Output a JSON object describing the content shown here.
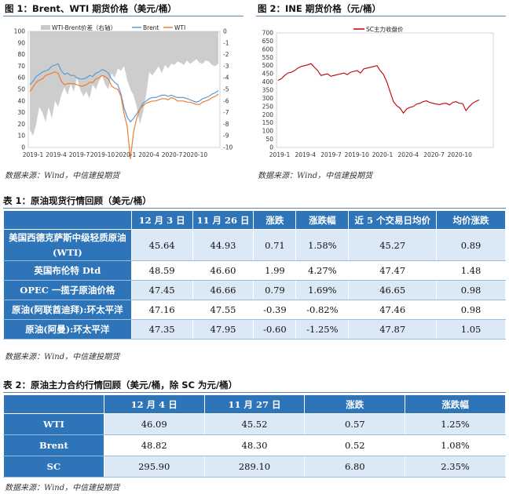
{
  "figure1": {
    "title": "图 1：Brent、WTI 期货价格（美元/桶）",
    "legend": [
      "WTI-Brent价差（右轴）",
      "Brent",
      "WTI"
    ],
    "source": "数据来源：Wind，中信建投期货",
    "chart_data": {
      "type": "line",
      "x_ticks": [
        "2019-1",
        "2019-4",
        "2019-7",
        "2019-10",
        "2020-1",
        "2020-4",
        "2020-7",
        "2020-10"
      ],
      "left_axis": {
        "ticks": [
          0,
          10,
          20,
          30,
          40,
          50,
          60,
          70,
          80,
          90,
          100
        ],
        "range": [
          0,
          100
        ]
      },
      "right_axis": {
        "ticks": [
          0,
          -1,
          -2,
          -3,
          -4,
          -5,
          -6,
          -7,
          -8,
          -9,
          -10
        ],
        "range": [
          -10,
          0
        ]
      },
      "series": [
        {
          "name": "WTI-Brent价差（右轴）",
          "kind": "area",
          "color": "#c8c8c8",
          "values": [
            -8.5,
            -9.0,
            -8.0,
            -6.5,
            -7.0,
            -7.8,
            -6.5,
            -7.5,
            -6.0,
            -6.5,
            -5.5,
            -4.8,
            -5.5,
            -4.5,
            -5.2,
            -4.0,
            -5.0,
            -5.6,
            -5.2,
            -5.8,
            -4.6,
            -5.0,
            -4.3,
            -3.8,
            -4.6,
            -5.0,
            -3.6,
            -4.0,
            -3.2,
            -3.4,
            -3.0,
            -4.2,
            -5.0,
            -5.5,
            -6.5,
            -8.0,
            -7.0,
            -5.5,
            -3.5,
            -3.8,
            -3.4,
            -3.0,
            -3.6,
            -2.9,
            -3.2,
            -2.8,
            -2.9,
            -2.6,
            -2.7,
            -2.9,
            -2.5,
            -2.8,
            -2.6,
            -2.4,
            -2.7,
            -2.8,
            -2.5,
            -2.6,
            -2.9,
            -3.0,
            -2.8
          ]
        },
        {
          "name": "Brent",
          "kind": "line",
          "color": "#5b9bd5",
          "values": [
            54,
            57,
            61,
            63,
            65,
            66,
            67,
            70,
            71,
            72,
            66,
            63,
            64,
            62,
            62,
            60,
            59,
            59,
            60,
            62,
            61,
            64,
            65,
            67,
            66,
            64,
            59,
            56,
            54,
            46,
            34,
            26,
            22,
            25,
            29,
            33,
            38,
            40,
            42,
            43,
            43,
            44,
            45,
            45,
            44,
            45,
            44,
            43,
            43,
            43,
            42,
            41,
            40,
            39,
            40,
            42,
            43,
            44,
            46,
            47,
            49
          ]
        },
        {
          "name": "WTI",
          "kind": "line",
          "color": "#ed7d31",
          "values": [
            48,
            52,
            56,
            58,
            59,
            62,
            63,
            64,
            65,
            64,
            57,
            54,
            55,
            55,
            55,
            54,
            53,
            53,
            54,
            56,
            56,
            59,
            60,
            62,
            61,
            59,
            53,
            51,
            50,
            44,
            29,
            18,
            -10,
            13,
            25,
            33,
            36,
            38,
            39,
            40,
            40,
            41,
            42,
            42,
            41,
            43,
            42,
            40,
            40,
            40,
            39,
            39,
            38,
            37,
            37,
            39,
            40,
            41,
            43,
            44,
            46
          ]
        }
      ]
    }
  },
  "figure2": {
    "title": "图 2：INE 期货价格（元/桶）",
    "legend": [
      "SC主力收盘价"
    ],
    "source": "数据来源：Wind，中信建投期货",
    "chart_data": {
      "type": "line",
      "x_ticks": [
        "2019-1",
        "2019-4",
        "2019-7",
        "2019-10",
        "2020-1",
        "2020-4",
        "2020-7",
        "2020-10"
      ],
      "y_axis": {
        "ticks": [
          0,
          50,
          100,
          150,
          200,
          250,
          300,
          350,
          400,
          450,
          500,
          550,
          600,
          650,
          700
        ],
        "range": [
          0,
          700
        ]
      },
      "series": [
        {
          "name": "SC主力收盘价",
          "color": "#c00000",
          "values": [
            410,
            420,
            440,
            455,
            460,
            470,
            485,
            495,
            500,
            505,
            512,
            490,
            470,
            440,
            445,
            450,
            435,
            440,
            445,
            450,
            455,
            445,
            460,
            465,
            470,
            455,
            480,
            485,
            490,
            495,
            500,
            470,
            445,
            400,
            340,
            280,
            255,
            240,
            210,
            235,
            245,
            250,
            265,
            270,
            280,
            285,
            275,
            270,
            265,
            262,
            268,
            270,
            260,
            275,
            280,
            270,
            268,
            225,
            250,
            270,
            282,
            290
          ]
        }
      ]
    }
  },
  "table1": {
    "title": "表 1：原油现货行情回顾（美元/桶）",
    "headers": [
      "",
      "12 月 3 日",
      "11 月 26 日",
      "涨跌",
      "涨跌幅",
      "近 5 个交易日均价",
      "均价涨跌"
    ],
    "rows": [
      {
        "name": "美国西德克萨斯中级轻质原油(WTI)",
        "values": [
          "45.64",
          "44.93",
          "0.71",
          "1.58%",
          "45.27",
          "0.89"
        ]
      },
      {
        "name": "英国布伦特 Dtd",
        "values": [
          "48.59",
          "46.60",
          "1.99",
          "4.27%",
          "47.47",
          "1.48"
        ]
      },
      {
        "name": "OPEC 一揽子原油价格",
        "values": [
          "47.45",
          "46.66",
          "0.79",
          "1.69%",
          "46.65",
          "0.98"
        ]
      },
      {
        "name": "原油(阿联酋迪拜):环太平洋",
        "values": [
          "47.16",
          "47.55",
          "-0.39",
          "-0.82%",
          "47.46",
          "0.98"
        ]
      },
      {
        "name": "原油(阿曼):环太平洋",
        "values": [
          "47.35",
          "47.95",
          "-0.60",
          "-1.25%",
          "47.87",
          "1.05"
        ]
      }
    ],
    "source": "数据来源：Wind，中信建投期货"
  },
  "table2": {
    "title": "表 2：原油主力合约行情回顾（美元/桶，除 SC 为元/桶）",
    "headers": [
      "",
      "12 月 4 日",
      "11 月 27 日",
      "涨跌",
      "涨跌幅"
    ],
    "rows": [
      {
        "name": "WTI",
        "values": [
          "46.09",
          "45.52",
          "0.57",
          "1.25%"
        ]
      },
      {
        "name": "Brent",
        "values": [
          "48.82",
          "48.30",
          "0.52",
          "1.08%"
        ]
      },
      {
        "name": "SC",
        "values": [
          "295.90",
          "289.10",
          "6.80",
          "2.35%"
        ]
      }
    ],
    "source": "数据来源：Wind，中信建投期货"
  }
}
